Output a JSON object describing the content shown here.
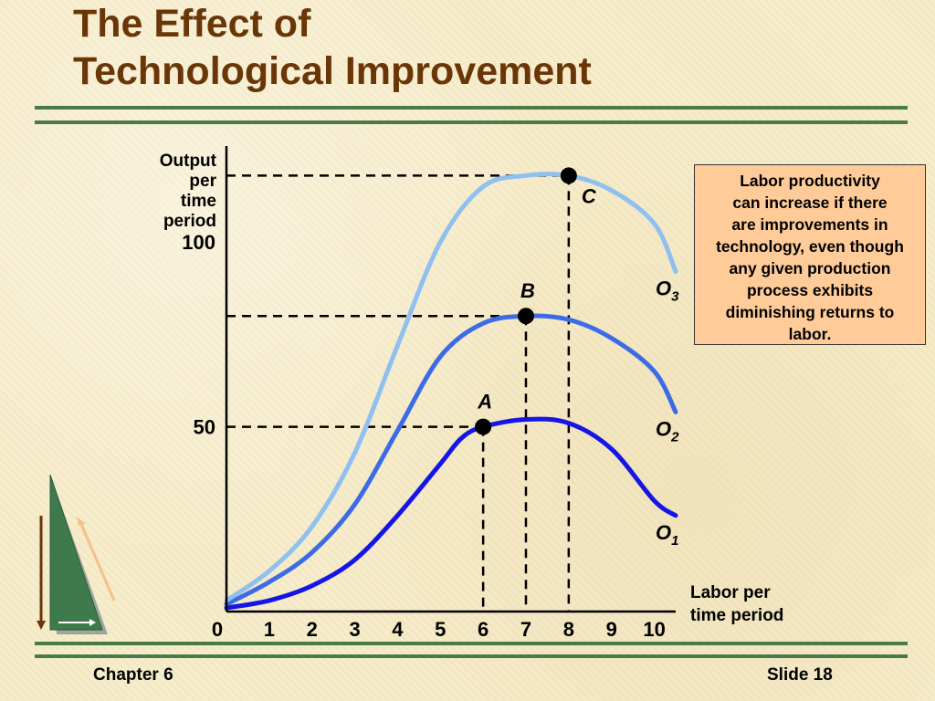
{
  "slide": {
    "title_line1": "The Effect of",
    "title_line2": "Technological Improvement",
    "footer_left": "Chapter 6",
    "footer_right": "Slide 18"
  },
  "note": {
    "lines": [
      "Labor productivity",
      "can increase if there",
      "are improvements in",
      "technology, even though",
      "any given production",
      "process exhibits",
      "diminishing returns to",
      "labor."
    ]
  },
  "chart_data": {
    "type": "line",
    "ylabel_lines": [
      "Output",
      "per",
      "time",
      "period"
    ],
    "xlabel_lines": [
      "Labor per",
      "time period"
    ],
    "x_ticks": [
      "0",
      "1",
      "2",
      "3",
      "4",
      "5",
      "6",
      "7",
      "8",
      "9",
      "10"
    ],
    "y_ticks": [
      {
        "value": 50,
        "label": "50"
      },
      {
        "value": 100,
        "label": "100"
      }
    ],
    "xlim": [
      0,
      10.5
    ],
    "ylim": [
      0,
      126
    ],
    "grid": false,
    "series": [
      {
        "name": "O1",
        "label_main": "O",
        "label_sub": "1",
        "color": "#1515e6",
        "points": [
          [
            0,
            1
          ],
          [
            1,
            3
          ],
          [
            2,
            7
          ],
          [
            3,
            14
          ],
          [
            4,
            26
          ],
          [
            5,
            40
          ],
          [
            5.5,
            47
          ],
          [
            6,
            50
          ],
          [
            7,
            52
          ],
          [
            8,
            51
          ],
          [
            9,
            44
          ],
          [
            10,
            30
          ],
          [
            10.5,
            26
          ]
        ]
      },
      {
        "name": "O2",
        "label_main": "O",
        "label_sub": "2",
        "color": "#3d6be6",
        "points": [
          [
            0,
            2
          ],
          [
            1,
            8
          ],
          [
            2,
            16
          ],
          [
            3,
            29
          ],
          [
            4,
            49
          ],
          [
            5,
            69
          ],
          [
            6,
            78
          ],
          [
            7,
            80
          ],
          [
            8,
            79
          ],
          [
            9,
            74
          ],
          [
            10,
            65
          ],
          [
            10.5,
            54
          ]
        ]
      },
      {
        "name": "O3",
        "label_main": "O",
        "label_sub": "3",
        "color": "#8fc0f0",
        "points": [
          [
            0,
            3
          ],
          [
            1,
            11
          ],
          [
            2,
            23
          ],
          [
            3,
            43
          ],
          [
            4,
            72
          ],
          [
            5,
            100
          ],
          [
            6,
            115
          ],
          [
            7,
            118
          ],
          [
            8,
            118
          ],
          [
            9,
            114
          ],
          [
            10,
            105
          ],
          [
            10.5,
            92
          ]
        ]
      }
    ],
    "points": [
      {
        "label": "A",
        "x": 6,
        "y": 50
      },
      {
        "label": "B",
        "x": 7,
        "y": 80
      },
      {
        "label": "C",
        "x": 8,
        "y": 118
      }
    ]
  }
}
